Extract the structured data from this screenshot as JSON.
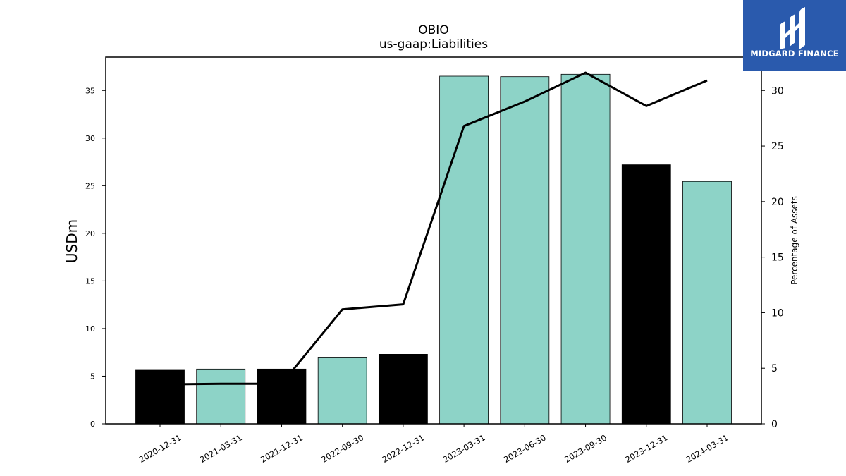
{
  "logo": {
    "text": "MIDGARD FINANCE",
    "icon": "midgard-logo-icon",
    "bg_color": "#2a5aad"
  },
  "chart_data": {
    "type": "bar",
    "title": "OBIO",
    "subtitle": "us-gaap:Liabilities",
    "ylabel": "USDm",
    "y2label": "Percentage of Assets",
    "categories": [
      "2020-12-31",
      "2021-03-31",
      "2021-12-31",
      "2022-09-30",
      "2022-12-31",
      "2023-03-31",
      "2023-06-30",
      "2023-09-30",
      "2023-12-31",
      "2024-03-31"
    ],
    "values": [
      5.7,
      5.75,
      5.75,
      7.0,
      7.3,
      36.5,
      36.45,
      36.7,
      27.2,
      25.45
    ],
    "bar_colors": [
      "#000000",
      "#8dd3c7",
      "#000000",
      "#8dd3c7",
      "#000000",
      "#8dd3c7",
      "#8dd3c7",
      "#8dd3c7",
      "#000000",
      "#8dd3c7"
    ],
    "line_values": [
      3.55,
      3.6,
      3.6,
      10.3,
      10.75,
      26.8,
      29.0,
      31.6,
      28.6,
      30.9
    ],
    "line_color": "#000000",
    "ylim": [
      0,
      38.5
    ],
    "y2lim": [
      0,
      33.0
    ],
    "yticks": [
      0,
      5,
      10,
      15,
      20,
      25,
      30,
      35
    ],
    "y2ticks": [
      0,
      5,
      10,
      15,
      20,
      25,
      30
    ],
    "grid": false
  }
}
